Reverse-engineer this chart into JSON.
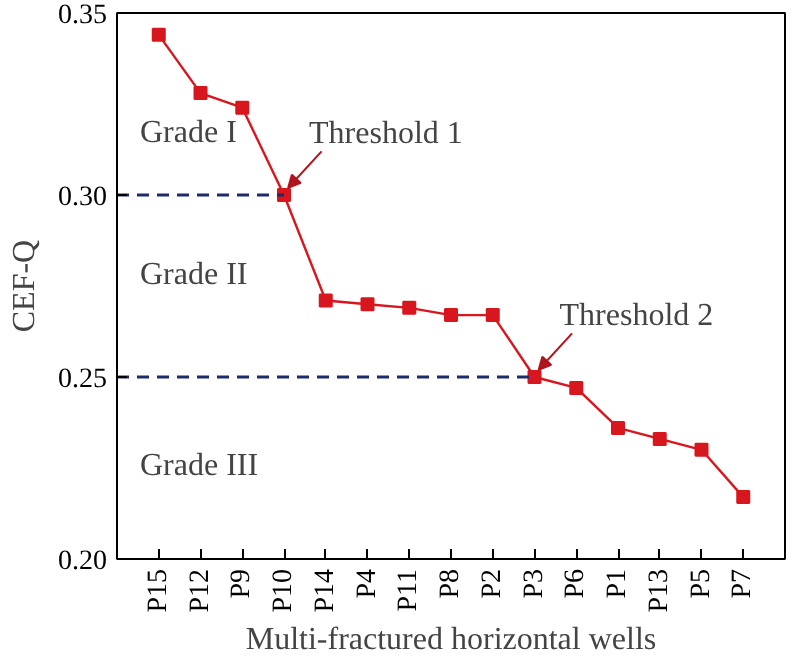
{
  "chart_data": {
    "type": "line",
    "xlabel": "Multi-fractured horizontal wells",
    "ylabel": "CEF-Q",
    "categories": [
      "P15",
      "P12",
      "P9",
      "P10",
      "P14",
      "P4",
      "P11",
      "P8",
      "P2",
      "P3",
      "P6",
      "P1",
      "P13",
      "P5",
      "P7"
    ],
    "series": [
      {
        "color": "#d7161e",
        "values": [
          0.344,
          0.328,
          0.324,
          0.3,
          0.271,
          0.27,
          0.269,
          0.267,
          0.267,
          0.25,
          0.247,
          0.236,
          0.233,
          0.23,
          0.217
        ]
      }
    ],
    "ylim": [
      0.2,
      0.35
    ],
    "yticks": [
      {
        "value": 0.2,
        "label": "0.20"
      },
      0.25,
      {
        "value": 0.3,
        "label": "0.30"
      },
      0.35
    ],
    "marker": "square",
    "line_style": "solid",
    "grid": false,
    "ref_lines": [
      {
        "axis": "y",
        "value": 0.3,
        "color": "#1f2a6b",
        "line_style": "dashed"
      },
      {
        "axis": "y",
        "value": 0.25,
        "color": "#1f2a6b",
        "line_style": "dashed"
      }
    ],
    "annotations": [
      "Grade I",
      "Grade II",
      "Grade III",
      {
        "text": "Threshold 1",
        "x": "P10",
        "y": 0.3
      },
      {
        "text": "Threshold 2",
        "x": "P3",
        "y": 0.25
      }
    ]
  }
}
